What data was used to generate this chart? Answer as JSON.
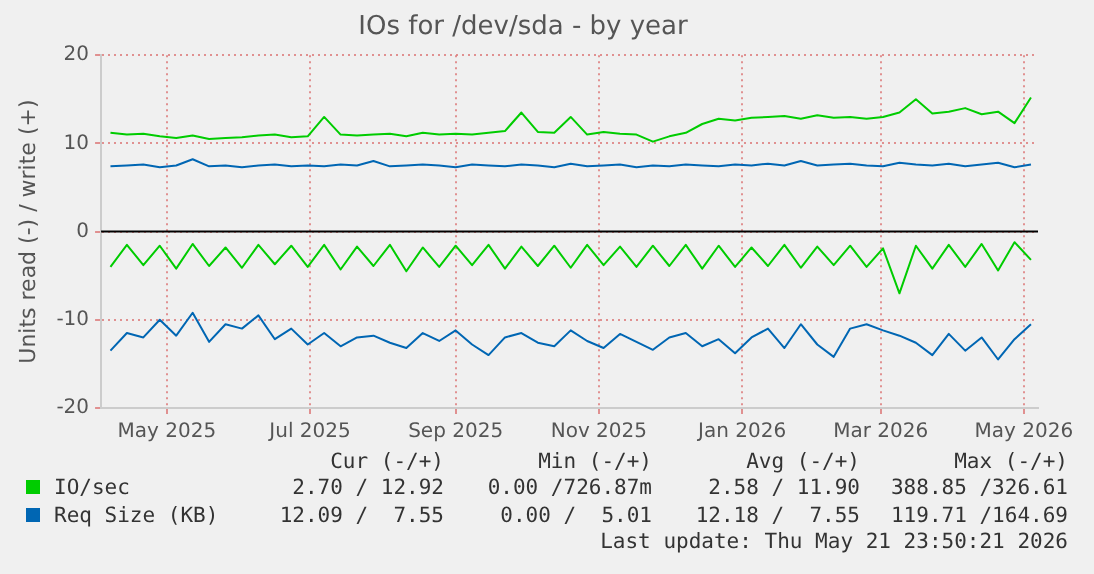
{
  "chart_data": {
    "type": "line",
    "title": "IOs for /dev/sda - by year",
    "ylabel": "Units read (-) / write (+)",
    "x": [
      "2025-04-07",
      "2025-04-14",
      "2025-04-21",
      "2025-04-28",
      "2025-05-05",
      "2025-05-12",
      "2025-05-19",
      "2025-05-26",
      "2025-06-02",
      "2025-06-09",
      "2025-06-16",
      "2025-06-23",
      "2025-06-30",
      "2025-07-07",
      "2025-07-14",
      "2025-07-21",
      "2025-07-28",
      "2025-08-04",
      "2025-08-11",
      "2025-08-18",
      "2025-08-25",
      "2025-09-01",
      "2025-09-08",
      "2025-09-15",
      "2025-09-22",
      "2025-09-29",
      "2025-10-06",
      "2025-10-13",
      "2025-10-20",
      "2025-10-27",
      "2025-11-03",
      "2025-11-10",
      "2025-11-17",
      "2025-11-24",
      "2025-12-01",
      "2025-12-08",
      "2025-12-15",
      "2025-12-22",
      "2025-12-29",
      "2026-01-05",
      "2026-01-12",
      "2026-01-19",
      "2026-01-26",
      "2026-02-02",
      "2026-02-09",
      "2026-02-16",
      "2026-02-23",
      "2026-03-02",
      "2026-03-09",
      "2026-03-16",
      "2026-03-23",
      "2026-03-30",
      "2026-04-06",
      "2026-04-13",
      "2026-04-20",
      "2026-04-27",
      "2026-05-04"
    ],
    "series": [
      {
        "name": "IO/sec",
        "color": "#00cc00",
        "values": [
          11.2,
          11.0,
          11.1,
          10.8,
          10.6,
          10.9,
          10.5,
          10.6,
          10.7,
          10.9,
          11.0,
          10.7,
          10.8,
          13.0,
          11.0,
          10.9,
          11.0,
          11.1,
          10.8,
          11.2,
          11.0,
          11.1,
          11.0,
          11.2,
          11.4,
          13.5,
          11.3,
          11.2,
          13.0,
          11.0,
          11.3,
          11.1,
          11.0,
          10.2,
          10.8,
          11.2,
          12.2,
          12.8,
          12.6,
          12.9,
          13.0,
          13.1,
          12.8,
          13.2,
          12.9,
          13.0,
          12.8,
          13.0,
          13.5,
          15.0,
          13.4,
          13.6,
          14.0,
          13.3,
          13.6,
          12.3,
          15.2
        ]
      },
      {
        "color": "#00cc00",
        "values": [
          -4.0,
          -1.5,
          -3.8,
          -1.6,
          -4.2,
          -1.4,
          -3.9,
          -1.8,
          -4.1,
          -1.5,
          -3.7,
          -1.6,
          -4.0,
          -1.5,
          -4.3,
          -1.7,
          -3.9,
          -1.5,
          -4.5,
          -1.8,
          -4.0,
          -1.6,
          -3.8,
          -1.5,
          -4.2,
          -1.7,
          -3.9,
          -1.6,
          -4.1,
          -1.5,
          -3.8,
          -1.7,
          -4.0,
          -1.6,
          -3.9,
          -1.5,
          -4.2,
          -1.6,
          -4.0,
          -1.8,
          -3.9,
          -1.5,
          -4.1,
          -1.7,
          -3.8,
          -1.6,
          -4.0,
          -1.9,
          -7.0,
          -1.6,
          -4.2,
          -1.5,
          -4.0,
          -1.4,
          -4.4,
          -1.2,
          -3.2
        ]
      },
      {
        "name": "Req Size (KB)",
        "color": "#0066b3",
        "values": [
          7.4,
          7.5,
          7.6,
          7.3,
          7.5,
          8.2,
          7.4,
          7.5,
          7.3,
          7.5,
          7.6,
          7.4,
          7.5,
          7.4,
          7.6,
          7.5,
          8.0,
          7.4,
          7.5,
          7.6,
          7.5,
          7.3,
          7.6,
          7.5,
          7.4,
          7.6,
          7.5,
          7.3,
          7.7,
          7.4,
          7.5,
          7.6,
          7.3,
          7.5,
          7.4,
          7.6,
          7.5,
          7.4,
          7.6,
          7.5,
          7.7,
          7.5,
          8.0,
          7.5,
          7.6,
          7.7,
          7.5,
          7.4,
          7.8,
          7.6,
          7.5,
          7.7,
          7.4,
          7.6,
          7.8,
          7.3,
          7.6
        ]
      },
      {
        "color": "#0066b3",
        "values": [
          -13.5,
          -11.5,
          -12.0,
          -10.0,
          -11.8,
          -9.2,
          -12.5,
          -10.5,
          -11.0,
          -9.5,
          -12.2,
          -11.0,
          -12.8,
          -11.5,
          -13.0,
          -12.0,
          -11.8,
          -12.6,
          -13.2,
          -11.5,
          -12.4,
          -11.2,
          -12.8,
          -14.0,
          -12.0,
          -11.5,
          -12.6,
          -13.0,
          -11.2,
          -12.4,
          -13.2,
          -11.6,
          -12.5,
          -13.4,
          -12.0,
          -11.5,
          -13.0,
          -12.2,
          -13.8,
          -12.0,
          -11.0,
          -13.2,
          -10.5,
          -12.8,
          -14.2,
          -11.0,
          -10.5,
          -11.2,
          -11.8,
          -12.6,
          -14.0,
          -11.6,
          -13.5,
          -12.0,
          -14.5,
          -12.2,
          -10.5
        ]
      }
    ],
    "xlim": [
      "2025-04-03",
      "2026-05-07"
    ],
    "xticks": [
      {
        "value": "2025-05-01",
        "label": "May 2025"
      },
      {
        "value": "2025-07-01",
        "label": "Jul 2025"
      },
      {
        "value": "2025-09-01",
        "label": "Sep 2025"
      },
      {
        "value": "2025-11-01",
        "label": "Nov 2025"
      },
      {
        "value": "2026-01-01",
        "label": "Jan 2026"
      },
      {
        "value": "2026-03-01",
        "label": "Mar 2026"
      },
      {
        "value": "2026-05-01",
        "label": "May 2026"
      }
    ],
    "ylim": [
      -20,
      20
    ],
    "yticks": [
      -20,
      -10,
      0,
      10,
      20
    ],
    "ref_lines": [
      {
        "axis": "y",
        "value": 0,
        "color": "#000000"
      }
    ],
    "grid": true,
    "legend": "bottom",
    "annotations": [
      "Cur (-/+)",
      "Min (-/+)",
      "Avg (-/+)",
      "Max (-/+)",
      "2.70 / 12.92",
      "0.00 /726.87m",
      "2.58 / 11.90",
      "388.85 /326.61",
      "12.09 /  7.55",
      "0.00 /  5.01",
      "12.18 /  7.55",
      "119.71 /164.69",
      "Last update: Thu May 21 23:50:21 2026"
    ]
  }
}
